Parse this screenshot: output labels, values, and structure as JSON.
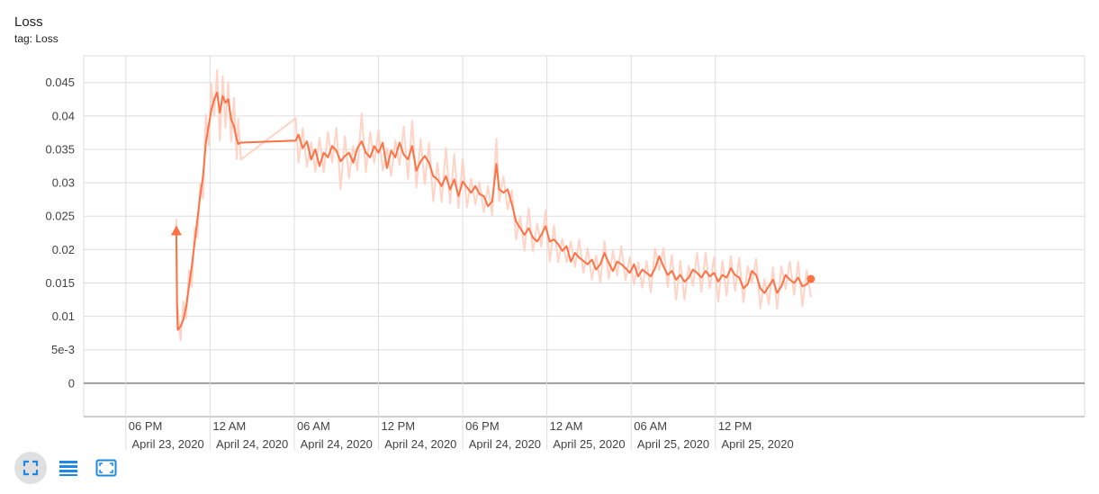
{
  "card": {
    "title": "Loss",
    "subtitle": "tag: Loss"
  },
  "colors": {
    "line": "#ff7043",
    "raw": "#ffccbc",
    "grid": "#dddddd",
    "axis": "#9e9e9e",
    "icon": "#1e88e5"
  },
  "toolbar": {
    "buttons": [
      {
        "name": "fit-domain-icon",
        "active": true
      },
      {
        "name": "log-scale-icon",
        "active": false
      },
      {
        "name": "expand-icon",
        "active": false
      }
    ]
  },
  "chart_data": {
    "type": "line",
    "title": "Loss",
    "xlabel": "",
    "ylabel": "",
    "ylim": [
      -0.005,
      0.049
    ],
    "yticks": [
      {
        "value": 0.045,
        "label": "0.045"
      },
      {
        "value": 0.04,
        "label": "0.04"
      },
      {
        "value": 0.035,
        "label": "0.035"
      },
      {
        "value": 0.03,
        "label": "0.03"
      },
      {
        "value": 0.025,
        "label": "0.025"
      },
      {
        "value": 0.02,
        "label": "0.02"
      },
      {
        "value": 0.015,
        "label": "0.015"
      },
      {
        "value": 0.01,
        "label": "0.01"
      },
      {
        "value": 0.005,
        "label": "5e-3"
      },
      {
        "value": 0,
        "label": "0"
      }
    ],
    "xlim_hours": [
      -3.0,
      68.3
    ],
    "xticks": [
      {
        "hour": 0,
        "time": "06 PM",
        "date": "April 23, 2020"
      },
      {
        "hour": 6,
        "time": "12 AM",
        "date": "April 24, 2020"
      },
      {
        "hour": 12,
        "time": "06 AM",
        "date": "April 24, 2020"
      },
      {
        "hour": 18,
        "time": "12 PM",
        "date": "April 24, 2020"
      },
      {
        "hour": 24,
        "time": "06 PM",
        "date": "April 24, 2020"
      },
      {
        "hour": 30,
        "time": "12 AM",
        "date": "April 25, 2020"
      },
      {
        "hour": 36,
        "time": "06 AM",
        "date": "April 25, 2020"
      },
      {
        "hour": 42,
        "time": "12 PM",
        "date": "April 25, 2020"
      }
    ],
    "grid": true,
    "series": [
      {
        "smoothed": true,
        "points": [
          [
            3.6,
            0.0228
          ],
          [
            3.65,
            0.012
          ],
          [
            3.7,
            0.008
          ],
          [
            3.9,
            0.0085
          ],
          [
            4.1,
            0.0095
          ],
          [
            4.3,
            0.0115
          ],
          [
            4.5,
            0.0145
          ],
          [
            4.7,
            0.0175
          ],
          [
            4.9,
            0.021
          ],
          [
            5.1,
            0.0245
          ],
          [
            5.3,
            0.028
          ],
          [
            5.5,
            0.031
          ],
          [
            5.7,
            0.036
          ],
          [
            5.9,
            0.0385
          ],
          [
            6.1,
            0.041
          ],
          [
            6.3,
            0.0425
          ],
          [
            6.5,
            0.0435
          ],
          [
            6.7,
            0.0405
          ],
          [
            6.9,
            0.043
          ],
          [
            7.1,
            0.042
          ],
          [
            7.3,
            0.0425
          ],
          [
            7.5,
            0.0395
          ],
          [
            7.7,
            0.0385
          ],
          [
            7.9,
            0.0365
          ],
          [
            8.0,
            0.0358
          ],
          [
            8.2,
            0.036
          ],
          [
            12.1,
            0.0363
          ],
          [
            12.3,
            0.0372
          ],
          [
            12.6,
            0.0352
          ],
          [
            12.9,
            0.0362
          ],
          [
            13.2,
            0.0335
          ],
          [
            13.5,
            0.035
          ],
          [
            13.8,
            0.0325
          ],
          [
            14.1,
            0.0345
          ],
          [
            14.4,
            0.0338
          ],
          [
            14.7,
            0.0355
          ],
          [
            15.0,
            0.0348
          ],
          [
            15.3,
            0.0332
          ],
          [
            15.6,
            0.034
          ],
          [
            15.9,
            0.0345
          ],
          [
            16.2,
            0.033
          ],
          [
            16.5,
            0.0352
          ],
          [
            16.8,
            0.0362
          ],
          [
            17.1,
            0.0345
          ],
          [
            17.4,
            0.0338
          ],
          [
            17.7,
            0.0355
          ],
          [
            18.0,
            0.0345
          ],
          [
            18.3,
            0.036
          ],
          [
            18.6,
            0.0322
          ],
          [
            18.9,
            0.0348
          ],
          [
            19.2,
            0.0338
          ],
          [
            19.5,
            0.036
          ],
          [
            19.8,
            0.0342
          ],
          [
            20.1,
            0.0335
          ],
          [
            20.4,
            0.0355
          ],
          [
            20.7,
            0.0318
          ],
          [
            21.0,
            0.0332
          ],
          [
            21.3,
            0.034
          ],
          [
            21.6,
            0.033
          ],
          [
            21.9,
            0.031
          ],
          [
            22.2,
            0.0305
          ],
          [
            22.5,
            0.0295
          ],
          [
            22.8,
            0.031
          ],
          [
            23.1,
            0.029
          ],
          [
            23.4,
            0.0305
          ],
          [
            23.7,
            0.028
          ],
          [
            24.0,
            0.0302
          ],
          [
            24.3,
            0.0293
          ],
          [
            24.6,
            0.0285
          ],
          [
            24.9,
            0.0295
          ],
          [
            25.2,
            0.0283
          ],
          [
            25.5,
            0.028
          ],
          [
            25.8,
            0.0265
          ],
          [
            26.1,
            0.0272
          ],
          [
            26.4,
            0.0328
          ],
          [
            26.6,
            0.029
          ],
          [
            26.9,
            0.0285
          ],
          [
            27.2,
            0.029
          ],
          [
            27.5,
            0.0268
          ],
          [
            27.8,
            0.0242
          ],
          [
            28.1,
            0.0232
          ],
          [
            28.4,
            0.0222
          ],
          [
            28.7,
            0.0232
          ],
          [
            29.0,
            0.0218
          ],
          [
            29.3,
            0.0212
          ],
          [
            29.6,
            0.0222
          ],
          [
            29.9,
            0.0235
          ],
          [
            30.2,
            0.0212
          ],
          [
            30.5,
            0.0215
          ],
          [
            30.8,
            0.0208
          ],
          [
            31.1,
            0.0198
          ],
          [
            31.4,
            0.0205
          ],
          [
            31.7,
            0.0182
          ],
          [
            32.0,
            0.0195
          ],
          [
            32.3,
            0.0188
          ],
          [
            32.6,
            0.0183
          ],
          [
            32.9,
            0.0178
          ],
          [
            33.2,
            0.0185
          ],
          [
            33.5,
            0.017
          ],
          [
            33.8,
            0.0178
          ],
          [
            34.1,
            0.0195
          ],
          [
            34.4,
            0.018
          ],
          [
            34.7,
            0.0168
          ],
          [
            35.0,
            0.0182
          ],
          [
            35.3,
            0.0178
          ],
          [
            35.6,
            0.0172
          ],
          [
            35.9,
            0.0165
          ],
          [
            36.2,
            0.0178
          ],
          [
            36.5,
            0.016
          ],
          [
            36.8,
            0.017
          ],
          [
            37.1,
            0.0165
          ],
          [
            37.4,
            0.016
          ],
          [
            37.7,
            0.0172
          ],
          [
            38.0,
            0.019
          ],
          [
            38.3,
            0.0175
          ],
          [
            38.6,
            0.0162
          ],
          [
            38.9,
            0.0168
          ],
          [
            39.2,
            0.0155
          ],
          [
            39.5,
            0.0162
          ],
          [
            39.8,
            0.0152
          ],
          [
            40.1,
            0.0158
          ],
          [
            40.4,
            0.017
          ],
          [
            40.7,
            0.0165
          ],
          [
            41.0,
            0.0158
          ],
          [
            41.3,
            0.0168
          ],
          [
            41.6,
            0.016
          ],
          [
            41.9,
            0.0165
          ],
          [
            42.2,
            0.0152
          ],
          [
            42.5,
            0.0162
          ],
          [
            42.8,
            0.0158
          ],
          [
            43.1,
            0.0172
          ],
          [
            43.4,
            0.0162
          ],
          [
            43.7,
            0.0158
          ],
          [
            44.0,
            0.0142
          ],
          [
            44.3,
            0.0148
          ],
          [
            44.6,
            0.0168
          ],
          [
            44.9,
            0.0162
          ],
          [
            45.2,
            0.0142
          ],
          [
            45.5,
            0.0135
          ],
          [
            45.8,
            0.0145
          ],
          [
            46.1,
            0.0155
          ],
          [
            46.4,
            0.0135
          ],
          [
            46.7,
            0.0145
          ],
          [
            47.0,
            0.0162
          ],
          [
            47.3,
            0.0155
          ],
          [
            47.6,
            0.015
          ],
          [
            47.9,
            0.0158
          ],
          [
            48.2,
            0.0145
          ],
          [
            48.5,
            0.0148
          ],
          [
            48.8,
            0.0156
          ]
        ]
      }
    ]
  }
}
